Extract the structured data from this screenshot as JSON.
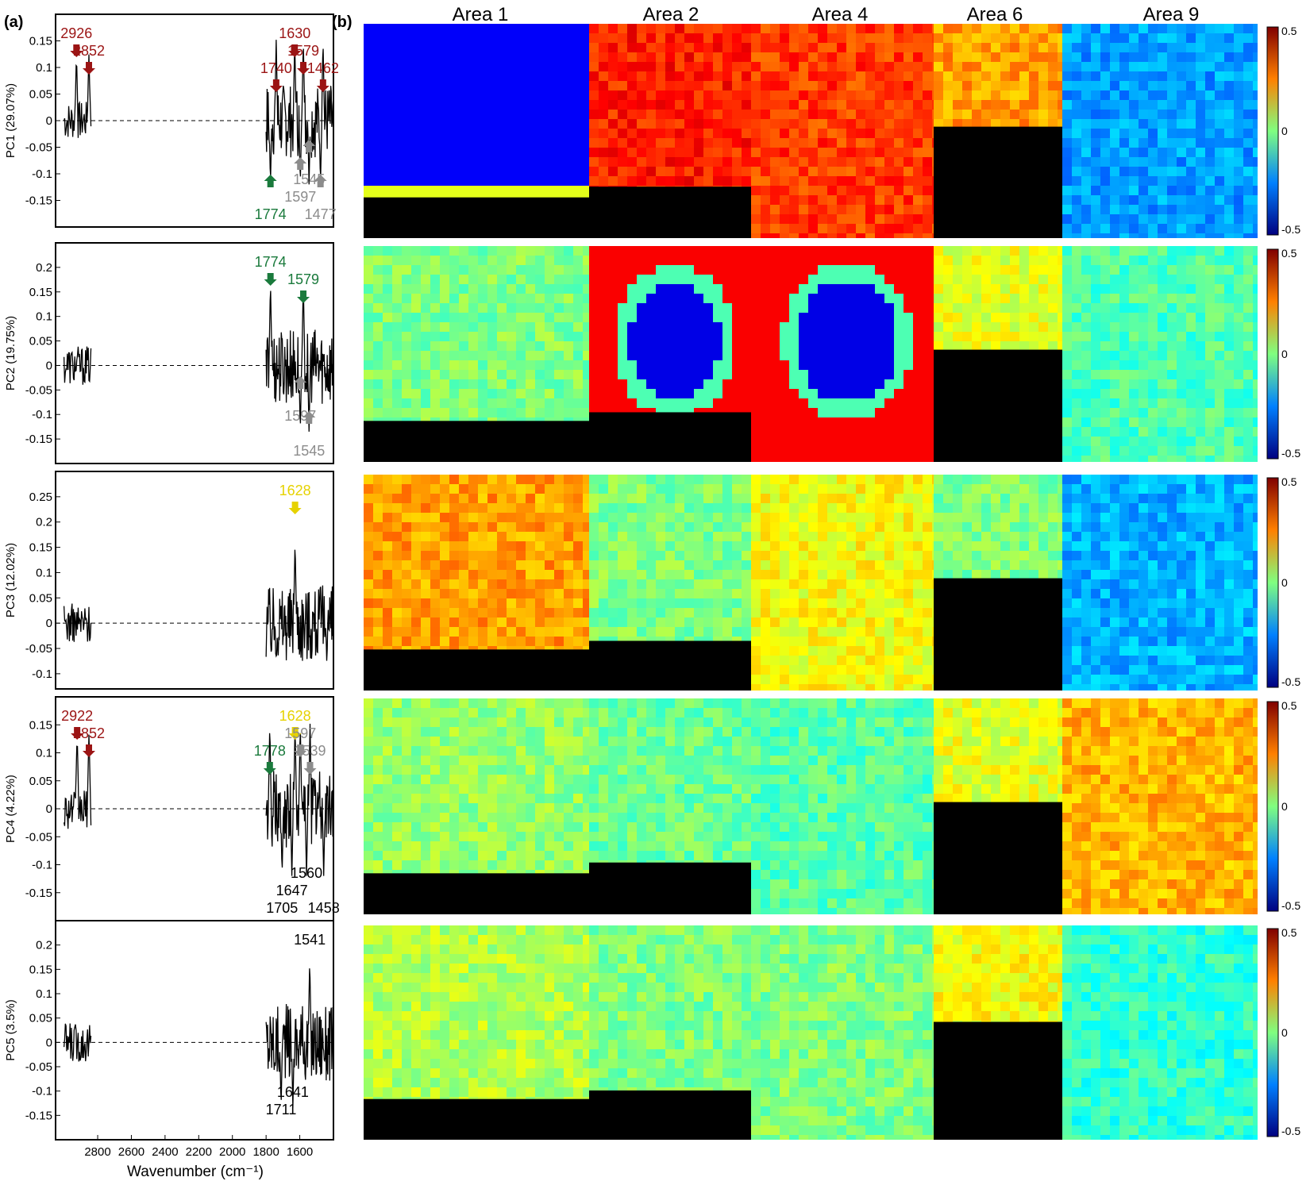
{
  "figure": {
    "panel_a_label": "(a)",
    "panel_b_label": "(b)",
    "xlabel": "Wavenumber (cm⁻¹)",
    "x_ticks": [
      "2800",
      "2600",
      "2400",
      "2200",
      "2000",
      "1800",
      "1600"
    ],
    "area_titles": [
      "Area 1",
      "Area 2",
      "Area 4",
      "Area 6",
      "Area 9"
    ],
    "colorbar_ticks": [
      "0.5",
      "0",
      "-0.5"
    ],
    "colors": {
      "red": "#9b1414",
      "green": "#1a7a3c",
      "gray": "#8c8c8c",
      "yellow": "#e6d200",
      "black": "#000000"
    }
  },
  "chart_data": [
    {
      "type": "line",
      "ylabel": "PC1 (29.07%)",
      "xlim": [
        3050,
        1400
      ],
      "ylim": [
        -0.2,
        0.2
      ],
      "y_ticks": [
        0.15,
        0.1,
        0.05,
        0,
        -0.05,
        -0.1,
        -0.15
      ],
      "peaks": [
        2926,
        2852,
        1740,
        1630,
        1579,
        1462
      ],
      "troughs": [
        1774,
        1597,
        1545,
        1477
      ],
      "annotations": [
        {
          "text": "2926",
          "x": 2926,
          "color": "red"
        },
        {
          "text": "2852",
          "x": 2852,
          "color": "red"
        },
        {
          "text": "1740",
          "x": 1740,
          "color": "red"
        },
        {
          "text": "1630",
          "x": 1630,
          "color": "red"
        },
        {
          "text": "1579",
          "x": 1579,
          "color": "red"
        },
        {
          "text": "1462",
          "x": 1462,
          "color": "red"
        },
        {
          "text": "1774",
          "x": 1774,
          "color": "green"
        },
        {
          "text": "1597",
          "x": 1597,
          "color": "gray"
        },
        {
          "text": "1545",
          "x": 1545,
          "color": "gray"
        },
        {
          "text": "1477",
          "x": 1477,
          "color": "gray"
        }
      ]
    },
    {
      "type": "line",
      "ylabel": "PC2 (19.75%)",
      "xlim": [
        3050,
        1400
      ],
      "ylim": [
        -0.2,
        0.25
      ],
      "y_ticks": [
        0.2,
        0.15,
        0.1,
        0.05,
        0,
        -0.05,
        -0.1,
        -0.15
      ],
      "peaks": [
        1774,
        1579
      ],
      "troughs": [
        1597,
        1545
      ],
      "annotations": [
        {
          "text": "1774",
          "x": 1774,
          "color": "green"
        },
        {
          "text": "1579",
          "x": 1579,
          "color": "green"
        },
        {
          "text": "1597",
          "x": 1597,
          "color": "gray"
        },
        {
          "text": "1545",
          "x": 1545,
          "color": "gray"
        }
      ]
    },
    {
      "type": "line",
      "ylabel": "PC3 (12.02%)",
      "xlim": [
        3050,
        1400
      ],
      "ylim": [
        -0.13,
        0.3
      ],
      "y_ticks": [
        0.25,
        0.2,
        0.15,
        0.1,
        0.05,
        0,
        -0.05,
        -0.1
      ],
      "peaks": [
        1628
      ],
      "troughs": [],
      "annotations": [
        {
          "text": "1628",
          "x": 1628,
          "color": "yellow"
        }
      ]
    },
    {
      "type": "line",
      "ylabel": "PC4 (4.22%)",
      "xlim": [
        3050,
        1400
      ],
      "ylim": [
        -0.2,
        0.2
      ],
      "y_ticks": [
        0.15,
        0.1,
        0.05,
        0,
        -0.05,
        -0.1,
        -0.15
      ],
      "peaks": [
        2922,
        2852,
        1778,
        1628,
        1597,
        1539
      ],
      "troughs": [
        1705,
        1647,
        1560,
        1458
      ],
      "annotations": [
        {
          "text": "2922",
          "x": 2922,
          "color": "red"
        },
        {
          "text": "2852",
          "x": 2852,
          "color": "red"
        },
        {
          "text": "1778",
          "x": 1778,
          "color": "green"
        },
        {
          "text": "1628",
          "x": 1628,
          "color": "yellow"
        },
        {
          "text": "1597",
          "x": 1597,
          "color": "gray"
        },
        {
          "text": "1539",
          "x": 1539,
          "color": "gray"
        },
        {
          "text": "1705",
          "x": 1705,
          "color": "black"
        },
        {
          "text": "1647",
          "x": 1647,
          "color": "black"
        },
        {
          "text": "1560",
          "x": 1560,
          "color": "black"
        },
        {
          "text": "1458",
          "x": 1458,
          "color": "black"
        }
      ]
    },
    {
      "type": "line",
      "ylabel": "PC5 (3.5%)",
      "xlim": [
        3050,
        1400
      ],
      "ylim": [
        -0.2,
        0.25
      ],
      "y_ticks": [
        0.2,
        0.15,
        0.1,
        0.05,
        0,
        -0.05,
        -0.1,
        -0.15
      ],
      "peaks": [
        1541
      ],
      "troughs": [
        1711,
        1641
      ],
      "annotations": [
        {
          "text": "1541",
          "x": 1541,
          "color": "black"
        },
        {
          "text": "1711",
          "x": 1711,
          "color": "black"
        },
        {
          "text": "1641",
          "x": 1641,
          "color": "black"
        }
      ]
    },
    {
      "type": "heatmap",
      "rows": [
        "PC1",
        "PC2",
        "PC3",
        "PC4",
        "PC5"
      ],
      "columns": [
        "Area 1",
        "Area 2",
        "Area 4",
        "Area 6",
        "Area 9"
      ],
      "colormap": "jet",
      "clim": [
        -0.5,
        0.5
      ]
    }
  ]
}
